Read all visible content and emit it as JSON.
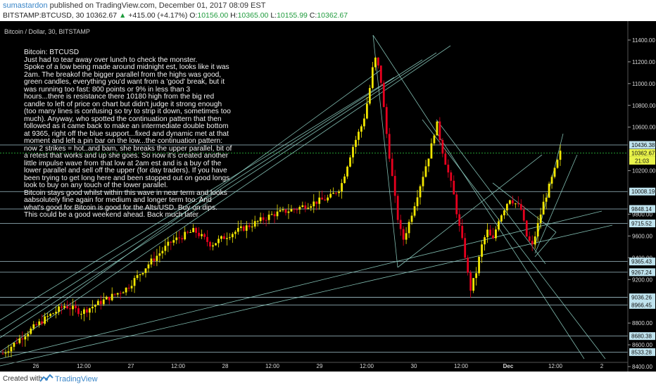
{
  "header": {
    "author": "sumastardon",
    "published": "published on TradingView.com, December 01, 2017 08:09 EST",
    "symbol": "BITSTAMP:BTCUSD, 30",
    "last": "10362.67",
    "change": "+415.00 (+4.17%)",
    "open_label": "O:",
    "open": "10156.00",
    "high_label": "H:",
    "high": "10365.00",
    "low_label": "L:",
    "low": "10155.99",
    "close_label": "C:",
    "close": "10362.67"
  },
  "chart_title": "Bitcoin / Dollar, 30, BITSTAMP",
  "note": "Bitcoin: BTCUSD\nJust had to tear away over lunch to check the monster.\nSpoke of a low being made around midnight est, looks like it was 2am. The breakof the bigger parallel from the highs was good, green candles, everything you'd want from a 'good' break, but it was running too fast: 800 points or 9% in less than 3 hours...there is resistance there 10180 high from the big red candle to left of price on chart but didn't judge it strong enough (too many lines is confusing so try to strip it down, sometimes too much). Anyway, who spotted the continuation pattern that then followed as it came back to make an intermediate double bottom at 9365, right off the blue support...fixed and dynamic met at that moment and left a pin bar on the low...the continuation pattern: now 2 strikes = hot..and bam, she breaks the upper parallel, bit of a retest that works and up she goes. So now it's created another little impulse wave from that low at 2am est and is a buy of the lower parallel and sell off the upper (for day traders). If you have been trying to get long here and been stopped out on good longs look to buy on any touch of the lower parallel.\n Bitcoin stays good whilst within this wave in near term and looks aabsolutely fine again for medium and longer term too. And what's good for Bitcoin is good for the Alts/USD. Buy on dips. This could be a good weekend ahead. Back much later",
  "chart_data": {
    "type": "candlestick",
    "title": "Bitcoin / Dollar, 30, BITSTAMP",
    "ylim": [
      8400,
      11600
    ],
    "y_ticks": [
      "11400.00",
      "11200.00",
      "11000.00",
      "10800.00",
      "10600.00",
      "10200.00",
      "9800.00",
      "9600.00",
      "9400.00",
      "9200.00",
      "8800.00",
      "8600.00",
      "8400.00"
    ],
    "x_ticks": [
      "26",
      "12:00",
      "27",
      "12:00",
      "28",
      "12:00",
      "29",
      "12:00",
      "30",
      "12:00",
      "Dec",
      "12:00",
      "2"
    ],
    "level_labels": [
      "10436.38",
      "10008.19",
      "9848.14",
      "9715.52",
      "9365.43",
      "9267.24",
      "9036.26",
      "8966.45",
      "8680.38",
      "8533.28"
    ],
    "last_price_label": "10362.67",
    "countdown_label": "21:03",
    "key_levels": [
      10436.38,
      10008.19,
      9848.14,
      9715.52,
      9365.43,
      9267.24,
      9036.26,
      8966.45,
      8680.38,
      8533.28
    ],
    "last_price": 10362.67,
    "price_path": [
      [
        0,
        8520
      ],
      [
        4,
        8700
      ],
      [
        8,
        8860
      ],
      [
        11,
        8960
      ],
      [
        14,
        8900
      ],
      [
        18,
        9010
      ],
      [
        22,
        9120
      ],
      [
        26,
        9350
      ],
      [
        30,
        9550
      ],
      [
        34,
        9650
      ],
      [
        37,
        9520
      ],
      [
        40,
        9610
      ],
      [
        44,
        9700
      ],
      [
        48,
        9800
      ],
      [
        52,
        9850
      ],
      [
        56,
        9920
      ],
      [
        58,
        9950
      ],
      [
        60,
        10050
      ],
      [
        62,
        10400
      ],
      [
        64,
        10650
      ],
      [
        65,
        10900
      ],
      [
        66,
        11250
      ],
      [
        67,
        11100
      ],
      [
        68,
        10600
      ],
      [
        69,
        10200
      ],
      [
        70,
        9800
      ],
      [
        71,
        9550
      ],
      [
        72,
        9700
      ],
      [
        74,
        10050
      ],
      [
        76,
        10400
      ],
      [
        77,
        10650
      ],
      [
        78,
        10400
      ],
      [
        80,
        10000
      ],
      [
        81,
        9700
      ],
      [
        82,
        9450
      ],
      [
        83,
        9100
      ],
      [
        84,
        9250
      ],
      [
        85,
        9500
      ],
      [
        86,
        9650
      ],
      [
        87,
        9550
      ],
      [
        88,
        9750
      ],
      [
        90,
        9950
      ],
      [
        92,
        9850
      ],
      [
        93,
        9600
      ],
      [
        94,
        9500
      ],
      [
        95,
        9700
      ],
      [
        96,
        9900
      ],
      [
        98,
        10200
      ],
      [
        99,
        10362.67
      ]
    ]
  },
  "footer": {
    "created_with": "Created with",
    "brand": "TradingView"
  },
  "colors": {
    "bull": "#f2e600",
    "bear": "#e8001e",
    "line": "#8fd1c4",
    "level": "#bfe3ee"
  }
}
